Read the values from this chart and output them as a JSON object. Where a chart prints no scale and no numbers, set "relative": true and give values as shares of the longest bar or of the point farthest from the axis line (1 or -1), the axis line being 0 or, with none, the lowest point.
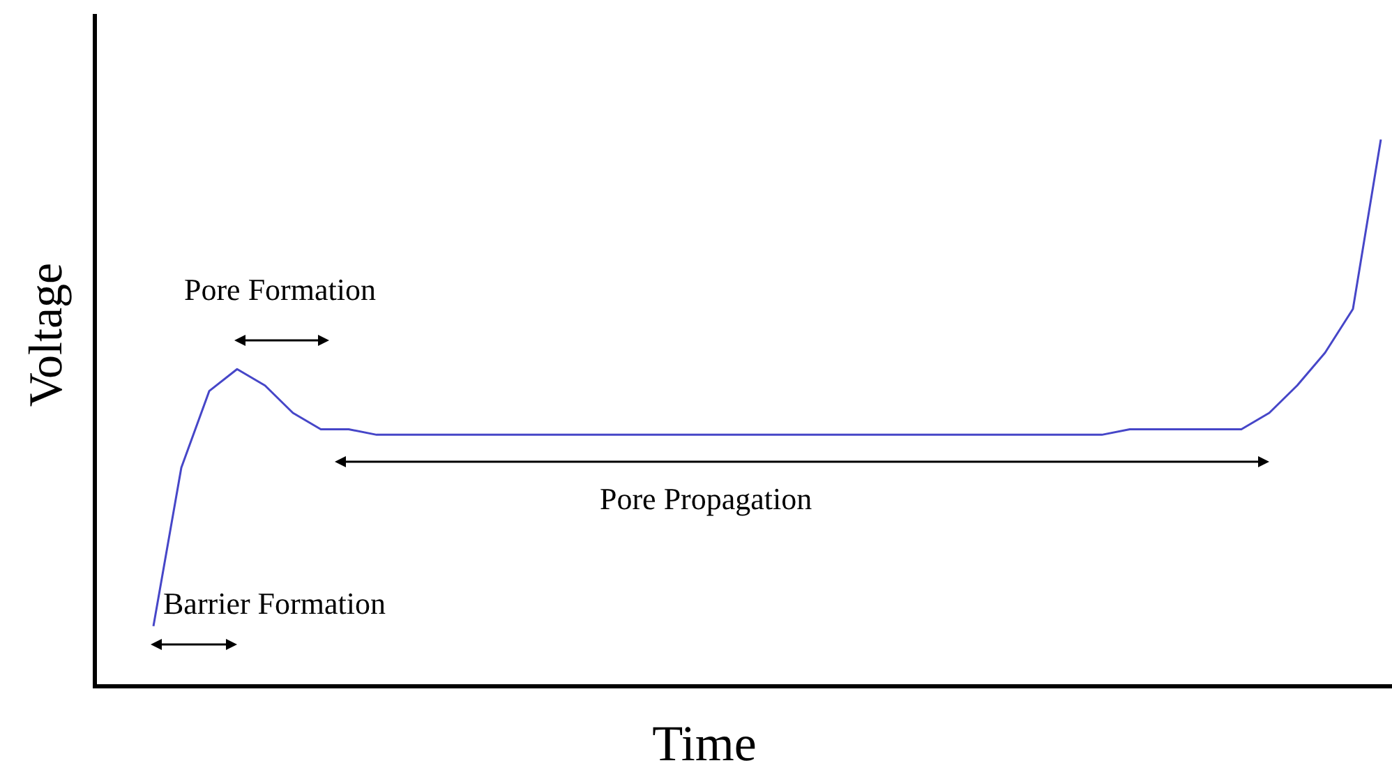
{
  "chart_data": {
    "type": "line",
    "relative": true,
    "xlabel": "Time",
    "ylabel": "Voltage",
    "categories": [
      null,
      null,
      null,
      null,
      null,
      null,
      null,
      null,
      null,
      null,
      null,
      null,
      null,
      null,
      null,
      null,
      null,
      null,
      null,
      null,
      null,
      null,
      null,
      null,
      null,
      null,
      null,
      null,
      null,
      null,
      null,
      null,
      null,
      null,
      null,
      null,
      null,
      null,
      null,
      null,
      null,
      null,
      null,
      null,
      null
    ],
    "series": [
      {
        "color": "#4646c8",
        "values": [
          0.11,
          0.4,
          0.54,
          0.58,
          0.55,
          0.5,
          0.47,
          0.47,
          0.46,
          0.46,
          0.46,
          0.46,
          0.46,
          0.46,
          0.46,
          0.46,
          0.46,
          0.46,
          0.46,
          0.46,
          0.46,
          0.46,
          0.46,
          0.46,
          0.46,
          0.46,
          0.46,
          0.46,
          0.46,
          0.46,
          0.46,
          0.46,
          0.46,
          0.46,
          0.46,
          0.47,
          0.47,
          0.47,
          0.47,
          0.47,
          0.5,
          0.55,
          0.61,
          0.69,
          1.0
        ]
      }
    ],
    "annotations": [
      "Pore Formation",
      "Pore Propagation",
      "Barrier Formation"
    ],
    "grid": false,
    "marker": "none",
    "line_style": "solid"
  }
}
